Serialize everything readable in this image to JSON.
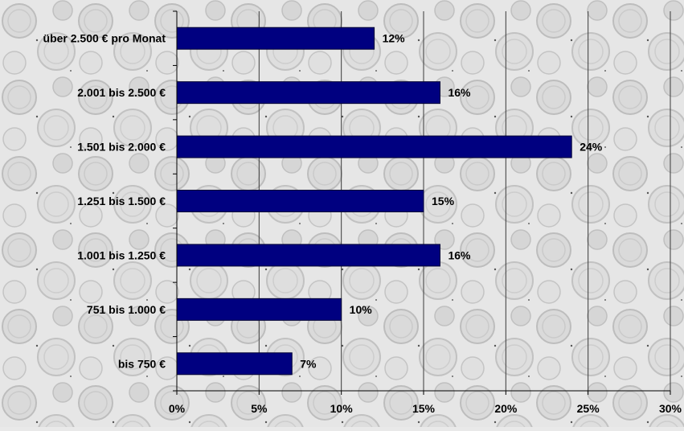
{
  "chart_data": {
    "type": "bar",
    "orientation": "horizontal",
    "categories": [
      "über 2.500 € pro Monat",
      "2.001 bis 2.500 €",
      "1.501 bis 2.000 €",
      "1.251 bis 1.500 €",
      "1.001 bis 1.250 €",
      "751 bis 1.000 €",
      "bis 750 €"
    ],
    "values": [
      12,
      16,
      24,
      15,
      16,
      10,
      7
    ],
    "data_labels": [
      "12%",
      "16%",
      "24%",
      "15%",
      "16%",
      "10%",
      "7%"
    ],
    "xlim": [
      0,
      30
    ],
    "xticks": [
      0,
      5,
      10,
      15,
      20,
      25,
      30
    ],
    "xtick_labels": [
      "0%",
      "5%",
      "10%",
      "15%",
      "20%",
      "25%",
      "30%"
    ],
    "grid": "vertical",
    "legend": "none",
    "colors": {
      "bar": "#000080",
      "gridline": "#3a3a3a",
      "text": "#000000",
      "background": "#e9e9e9"
    }
  }
}
